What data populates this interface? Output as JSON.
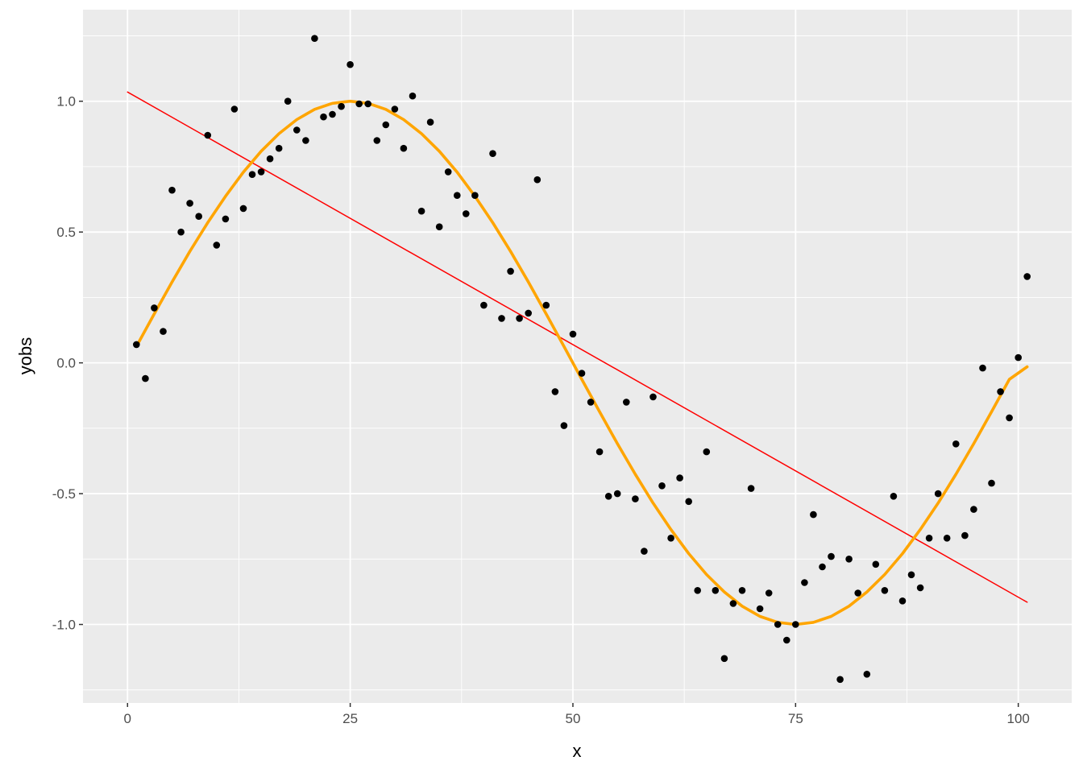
{
  "chart_data": {
    "type": "scatter",
    "xlabel": "x",
    "ylabel": "yobs",
    "xlim": [
      -5,
      106
    ],
    "ylim": [
      -1.3,
      1.35
    ],
    "x_ticks": [
      0,
      25,
      50,
      75,
      100
    ],
    "x_tick_labels": [
      "0",
      "25",
      "50",
      "75",
      "100"
    ],
    "y_ticks": [
      -1.0,
      -0.5,
      0.0,
      0.5,
      1.0
    ],
    "y_tick_labels": [
      "-1.0",
      "-0.5",
      "0.0",
      "0.5",
      "1.0"
    ],
    "grid": true,
    "background": "#ebebeb",
    "points": {
      "color": "#000000",
      "x": [
        1,
        2,
        3,
        4,
        5,
        6,
        7,
        8,
        9,
        10,
        11,
        12,
        13,
        14,
        15,
        16,
        17,
        18,
        19,
        20,
        21,
        22,
        23,
        24,
        25,
        26,
        27,
        28,
        29,
        30,
        31,
        32,
        33,
        34,
        35,
        36,
        37,
        38,
        39,
        40,
        41,
        42,
        43,
        44,
        45,
        46,
        47,
        48,
        49,
        50,
        51,
        52,
        53,
        54,
        55,
        56,
        57,
        58,
        59,
        60,
        61,
        62,
        63,
        64,
        65,
        66,
        67,
        68,
        69,
        70,
        71,
        72,
        73,
        74,
        75,
        76,
        77,
        78,
        79,
        80,
        81,
        82,
        83,
        84,
        85,
        86,
        87,
        88,
        89,
        90,
        91,
        92,
        93,
        94,
        95,
        96,
        97,
        98,
        99,
        100,
        101
      ],
      "y": [
        0.07,
        -0.06,
        0.21,
        0.12,
        0.66,
        0.5,
        0.61,
        0.56,
        0.87,
        0.45,
        0.55,
        0.97,
        0.59,
        0.72,
        0.73,
        0.78,
        0.82,
        1.0,
        0.89,
        0.85,
        1.24,
        0.94,
        0.95,
        0.98,
        1.14,
        0.99,
        0.99,
        0.85,
        0.91,
        0.97,
        0.82,
        1.02,
        0.58,
        0.92,
        0.52,
        0.73,
        0.64,
        0.57,
        0.64,
        0.22,
        0.8,
        0.17,
        0.35,
        0.17,
        0.19,
        0.7,
        0.22,
        -0.11,
        -0.24,
        0.11,
        -0.04,
        -0.15,
        -0.34,
        -0.51,
        -0.5,
        -0.15,
        -0.52,
        -0.72,
        -0.13,
        -0.47,
        -0.67,
        -0.44,
        -0.53,
        -0.87,
        -0.34,
        -0.87,
        -1.13,
        -0.92,
        -0.87,
        -0.48,
        -0.94,
        -0.88,
        -1.0,
        -1.06,
        -1.0,
        -0.84,
        -0.58,
        -0.78,
        -0.74,
        -1.21,
        -0.75,
        -0.88,
        -1.19,
        -0.77,
        -0.87,
        -0.51,
        -0.91,
        -0.81,
        -0.86,
        -0.67,
        -0.5,
        -0.67,
        -0.31,
        -0.66,
        -0.56,
        -0.02,
        -0.46,
        -0.11,
        -0.21,
        0.02,
        0.33
      ]
    },
    "series": [
      {
        "type": "line",
        "color": "#ff0000",
        "x": [
          0,
          101
        ],
        "y": [
          1.035,
          -0.915
        ]
      },
      {
        "type": "line",
        "color": "#ffa500",
        "x": [
          1,
          3,
          5,
          7,
          9,
          11,
          13,
          15,
          17,
          19,
          21,
          23,
          25,
          27,
          29,
          31,
          33,
          35,
          37,
          39,
          41,
          43,
          45,
          47,
          49,
          51,
          53,
          55,
          57,
          59,
          61,
          63,
          65,
          67,
          69,
          71,
          73,
          75,
          77,
          79,
          81,
          83,
          85,
          87,
          89,
          91,
          93,
          95,
          97,
          99,
          101
        ],
        "y": [
          0.063,
          0.187,
          0.309,
          0.426,
          0.536,
          0.637,
          0.729,
          0.809,
          0.876,
          0.93,
          0.969,
          0.992,
          1.0,
          0.992,
          0.969,
          0.93,
          0.876,
          0.809,
          0.729,
          0.637,
          0.536,
          0.426,
          0.309,
          0.187,
          0.063,
          -0.063,
          -0.187,
          -0.309,
          -0.426,
          -0.536,
          -0.637,
          -0.729,
          -0.809,
          -0.876,
          -0.93,
          -0.969,
          -0.992,
          -1.0,
          -0.992,
          -0.969,
          -0.93,
          -0.876,
          -0.809,
          -0.729,
          -0.637,
          -0.536,
          -0.426,
          -0.309,
          -0.187,
          -0.063,
          -0.015
        ]
      }
    ]
  }
}
